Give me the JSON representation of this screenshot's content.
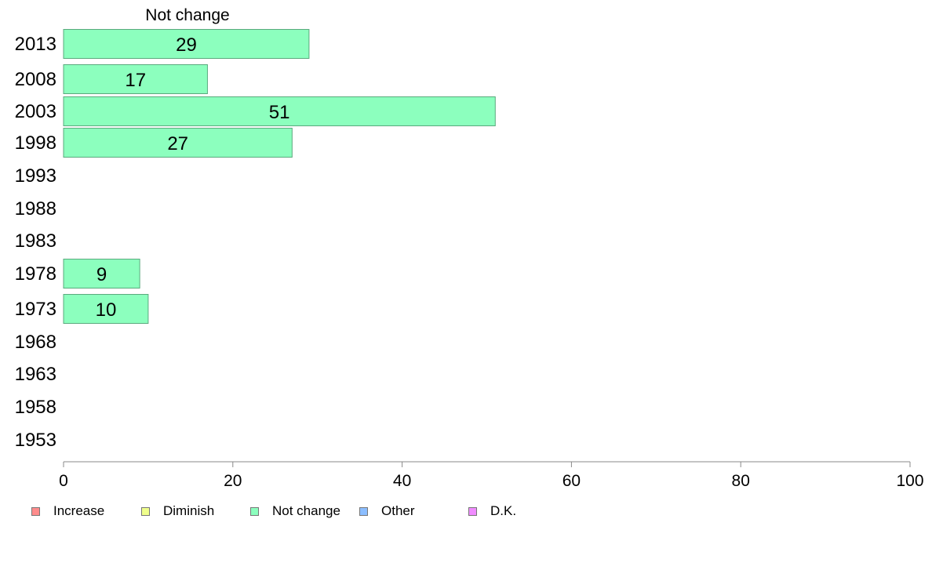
{
  "chart_data": {
    "type": "bar",
    "orientation": "horizontal",
    "title": "Not change",
    "categories": [
      "2013",
      "2008",
      "2003",
      "1998",
      "1993",
      "1988",
      "1983",
      "1978",
      "1973",
      "1968",
      "1963",
      "1958",
      "1953"
    ],
    "series": [
      {
        "name": "Not change",
        "values": [
          29,
          17,
          51,
          27,
          null,
          null,
          null,
          9,
          10,
          null,
          null,
          null,
          null
        ]
      }
    ],
    "xlim": [
      0,
      100
    ],
    "xticks": [
      "0",
      "20",
      "40",
      "60",
      "80",
      "100"
    ],
    "grid": false,
    "legend_position": "bottom",
    "legend": [
      {
        "label": "Increase",
        "color": "#ff8c8c"
      },
      {
        "label": "Diminish",
        "color": "#f0ff8c"
      },
      {
        "label": "Not change",
        "color": "#8cffbe"
      },
      {
        "label": "Other",
        "color": "#8cbeff"
      },
      {
        "label": "D.K.",
        "color": "#f08cff"
      }
    ],
    "bar_color": "#8cffbe",
    "bar_stroke": "#5aaa7d"
  }
}
